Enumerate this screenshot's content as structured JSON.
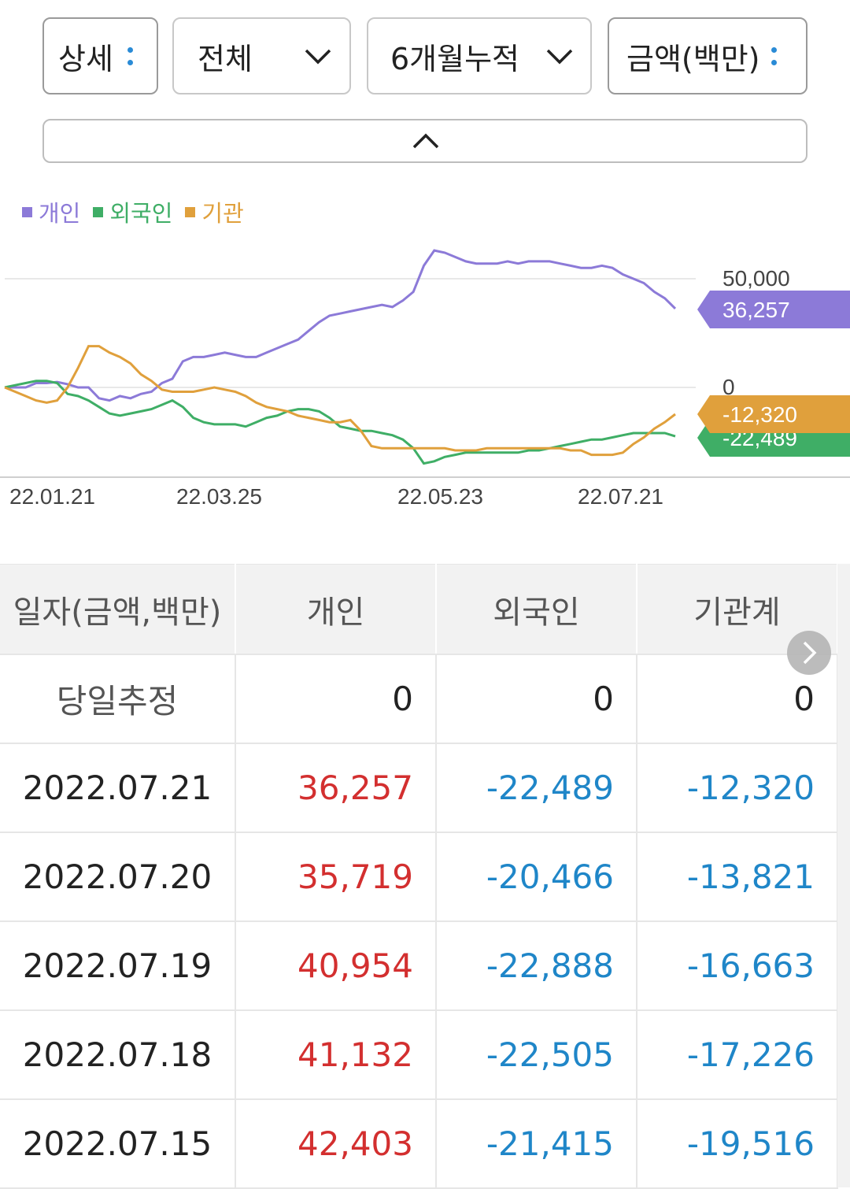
{
  "controls": {
    "detail_label": "상세",
    "scope_label": "전체",
    "period_label": "6개월누적",
    "unit_label": "금액(백만)"
  },
  "colors": {
    "individual": "#8c7ad8",
    "foreign": "#3fae66",
    "institution": "#e0a03c",
    "positive": "#d32f2f",
    "negative": "#1f86c8"
  },
  "chart_data": {
    "type": "line",
    "legend": [
      "개인",
      "외국인",
      "기관"
    ],
    "x_ticks": [
      "22.01.21",
      "22.03.25",
      "22.05.23",
      "22.07.21"
    ],
    "y_ticks": [
      "50,000",
      "0"
    ],
    "ylim": [
      -40000,
      66000
    ],
    "last_labels": {
      "individual": "36,257",
      "institution": "-12,320",
      "foreign": "-22,489"
    },
    "series": [
      {
        "name": "개인",
        "key": "individual",
        "values": [
          0,
          0,
          0,
          2000,
          2000,
          2500,
          1500,
          0,
          0,
          -5000,
          -6000,
          -4000,
          -5000,
          -3000,
          -2000,
          2000,
          4000,
          12000,
          14000,
          14000,
          15000,
          16000,
          15000,
          14000,
          14000,
          16000,
          18000,
          20000,
          22000,
          26000,
          30000,
          33000,
          34000,
          35000,
          36000,
          37000,
          38000,
          37000,
          40000,
          44000,
          56000,
          63000,
          62000,
          60000,
          58000,
          57000,
          57000,
          57000,
          58000,
          57000,
          58000,
          58000,
          58000,
          57000,
          56000,
          55000,
          55000,
          56000,
          55000,
          52000,
          50000,
          48000,
          44000,
          41000,
          36257
        ]
      },
      {
        "name": "외국인",
        "key": "foreign",
        "values": [
          0,
          1000,
          2000,
          3000,
          3000,
          2000,
          -3000,
          -4000,
          -6000,
          -9000,
          -12000,
          -13000,
          -12000,
          -11000,
          -10000,
          -8000,
          -6000,
          -9000,
          -14000,
          -16000,
          -17000,
          -17000,
          -17000,
          -18000,
          -16000,
          -14000,
          -13000,
          -11000,
          -10000,
          -10000,
          -11000,
          -14000,
          -18000,
          -19000,
          -20000,
          -20000,
          -21000,
          -22000,
          -24000,
          -28000,
          -35000,
          -34000,
          -32000,
          -31000,
          -30000,
          -30000,
          -30000,
          -30000,
          -30000,
          -30000,
          -29000,
          -29000,
          -28000,
          -27000,
          -26000,
          -25000,
          -24000,
          -24000,
          -23000,
          -22000,
          -21000,
          -21000,
          -21000,
          -21000,
          -22489
        ]
      },
      {
        "name": "기관",
        "key": "institution",
        "values": [
          0,
          -2000,
          -4000,
          -6000,
          -7000,
          -6000,
          0,
          9000,
          19000,
          19000,
          16000,
          14000,
          11000,
          6000,
          3000,
          -1000,
          -2000,
          -2000,
          -2000,
          -1000,
          0,
          -1000,
          -2000,
          -4000,
          -7000,
          -9000,
          -10000,
          -11000,
          -13000,
          -14000,
          -15000,
          -16000,
          -16000,
          -15000,
          -20000,
          -27000,
          -28000,
          -28000,
          -28000,
          -28000,
          -28000,
          -28000,
          -28000,
          -29000,
          -29000,
          -29000,
          -28000,
          -28000,
          -28000,
          -28000,
          -28000,
          -28000,
          -28000,
          -28000,
          -29000,
          -29000,
          -31000,
          -31000,
          -31000,
          -30000,
          -26000,
          -23000,
          -19000,
          -16000,
          -12320
        ]
      }
    ]
  },
  "table": {
    "headers": [
      "일자(금액,백만)",
      "개인",
      "외국인",
      "기관계"
    ],
    "rows": [
      {
        "date": "당일추정",
        "individual": "0",
        "foreign": "0",
        "institution": "0"
      },
      {
        "date": "2022.07.21",
        "individual": "36,257",
        "foreign": "-22,489",
        "institution": "-12,320"
      },
      {
        "date": "2022.07.20",
        "individual": "35,719",
        "foreign": "-20,466",
        "institution": "-13,821"
      },
      {
        "date": "2022.07.19",
        "individual": "40,954",
        "foreign": "-22,888",
        "institution": "-16,663"
      },
      {
        "date": "2022.07.18",
        "individual": "41,132",
        "foreign": "-22,505",
        "institution": "-17,226"
      },
      {
        "date": "2022.07.15",
        "individual": "42,403",
        "foreign": "-21,415",
        "institution": "-19,516"
      }
    ]
  }
}
